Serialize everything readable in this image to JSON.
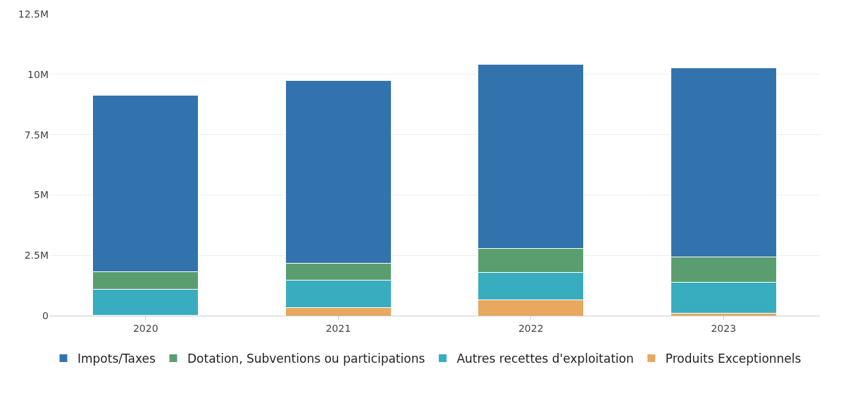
{
  "chart_data": {
    "type": "bar",
    "stacked": true,
    "categories": [
      "2020",
      "2021",
      "2022",
      "2023"
    ],
    "series": [
      {
        "name": "Produits Exceptionnels",
        "color": "#e8a860",
        "values": [
          20000,
          340000,
          660000,
          100000
        ]
      },
      {
        "name": "Autres recettes d'exploitation",
        "color": "#38adbf",
        "values": [
          1070000,
          1130000,
          1120000,
          1280000
        ]
      },
      {
        "name": "Dotation, Subventions ou participations",
        "color": "#5a9e70",
        "values": [
          720000,
          710000,
          1010000,
          1060000
        ]
      },
      {
        "name": "Impots/Taxes",
        "color": "#3273ae",
        "values": [
          7330000,
          7560000,
          7640000,
          7820000
        ]
      }
    ],
    "ylim": [
      0,
      12500000
    ],
    "yticks": [
      0,
      {
        "value": 2500000,
        "label": "2.5M"
      },
      {
        "value": 5000000,
        "label": "5M"
      },
      {
        "value": 7500000,
        "label": "7.5M"
      },
      {
        "value": 10000000,
        "label": "10M"
      },
      {
        "value": 12500000,
        "label": "12.5M"
      }
    ],
    "grid": "y",
    "legend": "bottom"
  }
}
